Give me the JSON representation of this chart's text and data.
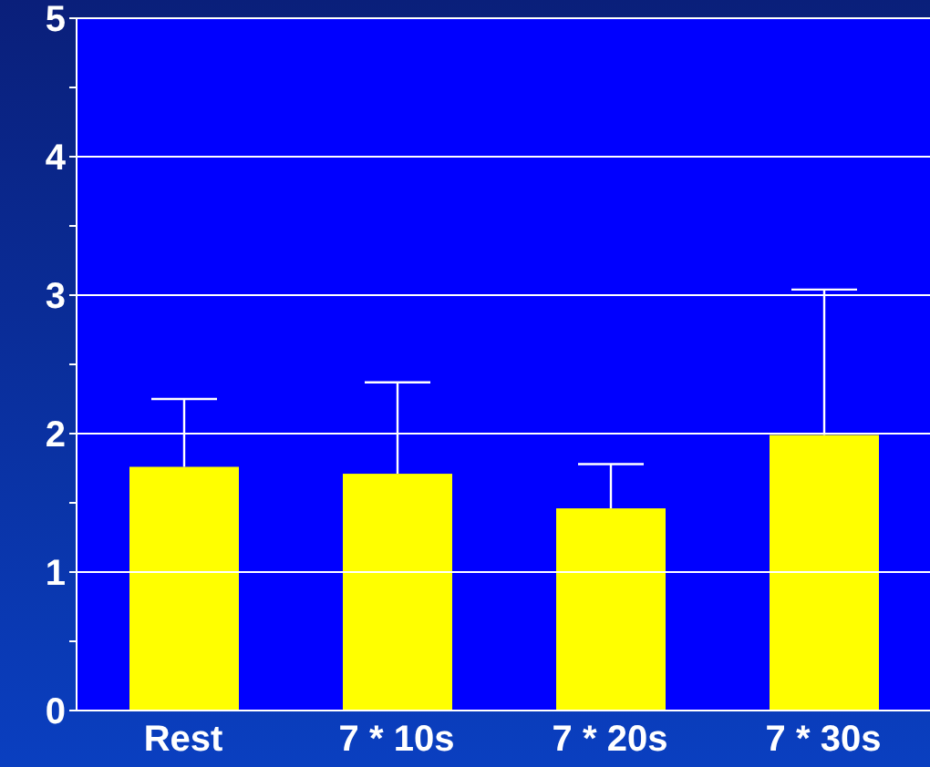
{
  "chart_data": {
    "type": "bar",
    "categories": [
      "Rest",
      "7 * 10s",
      "7 * 20s",
      "7 * 30s"
    ],
    "values": [
      1.76,
      1.71,
      1.46,
      1.99
    ],
    "color": "#ffff00",
    "errors": [
      [
        1.76,
        2.25
      ],
      [
        1.71,
        2.37
      ],
      [
        1.46,
        1.78
      ],
      [
        1.99,
        3.04
      ]
    ],
    "ylim": [
      0,
      5
    ],
    "yticks": [
      0,
      {
        "value": 0.5,
        "label": null
      },
      1,
      {
        "value": 1.5,
        "label": null
      },
      2,
      {
        "value": 2.5,
        "label": null
      },
      3,
      {
        "value": 3.5,
        "label": null
      },
      4,
      {
        "value": 4.5,
        "label": null
      },
      5
    ],
    "grid": "y"
  }
}
